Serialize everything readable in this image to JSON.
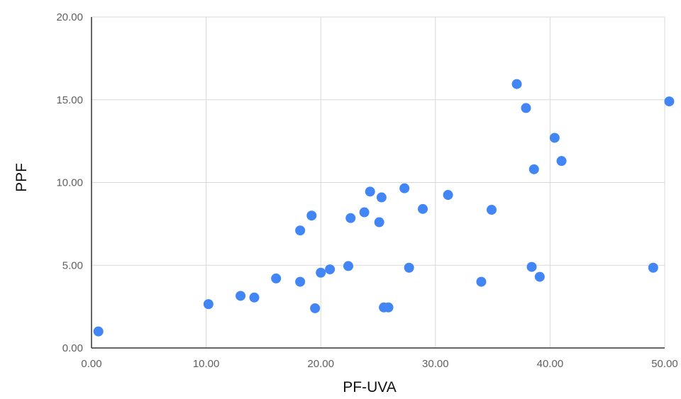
{
  "chart_data": {
    "type": "scatter",
    "title": "",
    "xlabel": "PF-UVA",
    "ylabel": "PPF",
    "xlim": [
      0,
      50
    ],
    "ylim": [
      0,
      20
    ],
    "x_ticks": [
      "0.00",
      "10.00",
      "20.00",
      "30.00",
      "40.00",
      "50.00"
    ],
    "y_ticks": [
      "0.00",
      "5.00",
      "10.00",
      "15.00",
      "20.00"
    ],
    "grid": true,
    "legend": "none",
    "marker_color": "#4285f4",
    "points": [
      {
        "x": 0.6,
        "y": 1.0
      },
      {
        "x": 10.2,
        "y": 2.65
      },
      {
        "x": 13.0,
        "y": 3.15
      },
      {
        "x": 14.2,
        "y": 3.05
      },
      {
        "x": 16.1,
        "y": 4.2
      },
      {
        "x": 18.2,
        "y": 4.0
      },
      {
        "x": 18.2,
        "y": 7.1
      },
      {
        "x": 19.2,
        "y": 8.0
      },
      {
        "x": 19.5,
        "y": 2.4
      },
      {
        "x": 20.0,
        "y": 4.55
      },
      {
        "x": 20.8,
        "y": 4.75
      },
      {
        "x": 22.4,
        "y": 4.95
      },
      {
        "x": 22.6,
        "y": 7.85
      },
      {
        "x": 23.8,
        "y": 8.2
      },
      {
        "x": 24.3,
        "y": 9.45
      },
      {
        "x": 25.1,
        "y": 7.6
      },
      {
        "x": 25.3,
        "y": 9.1
      },
      {
        "x": 25.5,
        "y": 2.45
      },
      {
        "x": 25.9,
        "y": 2.45
      },
      {
        "x": 27.3,
        "y": 9.65
      },
      {
        "x": 27.7,
        "y": 4.85
      },
      {
        "x": 28.9,
        "y": 8.4
      },
      {
        "x": 31.1,
        "y": 9.25
      },
      {
        "x": 34.0,
        "y": 4.0
      },
      {
        "x": 34.9,
        "y": 8.35
      },
      {
        "x": 37.1,
        "y": 15.95
      },
      {
        "x": 37.9,
        "y": 14.5
      },
      {
        "x": 38.4,
        "y": 4.9
      },
      {
        "x": 38.6,
        "y": 10.8
      },
      {
        "x": 39.1,
        "y": 4.3
      },
      {
        "x": 40.4,
        "y": 12.7
      },
      {
        "x": 41.0,
        "y": 11.3
      },
      {
        "x": 49.0,
        "y": 4.85
      },
      {
        "x": 50.4,
        "y": 14.9
      }
    ]
  }
}
